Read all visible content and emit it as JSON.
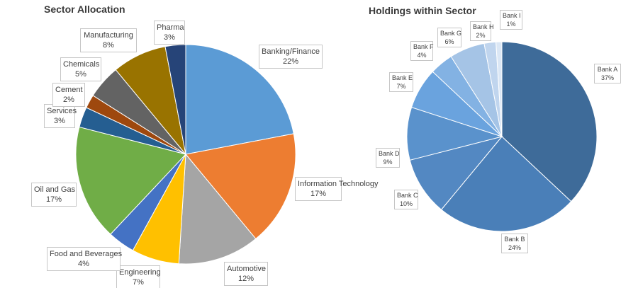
{
  "chart_data": [
    {
      "type": "pie",
      "title": "Sector Allocation",
      "categories": [
        "Banking/Finance",
        "Information Technology",
        "Automotive",
        "Engineering",
        "Food and Beverages",
        "Oil and Gas",
        "Services",
        "Cement",
        "Chemicals",
        "Manufacturing",
        "Pharma"
      ],
      "values": [
        22,
        17,
        12,
        7,
        4,
        17,
        3,
        2,
        5,
        8,
        3
      ],
      "labels": [
        "22%",
        "17%",
        "12%",
        "7%",
        "4%",
        "17%",
        "3%",
        "2%",
        "5%",
        "8%",
        "3%"
      ],
      "colors": [
        "#5b9bd5",
        "#ed7d31",
        "#a5a5a5",
        "#ffc000",
        "#4472c4",
        "#70ad47",
        "#255e91",
        "#9e480e",
        "#636363",
        "#997300",
        "#264478"
      ]
    },
    {
      "type": "pie",
      "title": "Holdings within Sector",
      "categories": [
        "Bank A",
        "Bank B",
        "Bank C",
        "Bank D",
        "Bank E",
        "Bank F",
        "Bank G",
        "Bank H",
        "Bank I"
      ],
      "values": [
        37,
        24,
        10,
        9,
        7,
        4,
        6,
        2,
        1
      ],
      "labels": [
        "37%",
        "24%",
        "10%",
        "9%",
        "7%",
        "4%",
        "6%",
        "2%",
        "1%"
      ],
      "colors": [
        "#3e6b99",
        "#4a7fb8",
        "#5388c2",
        "#5a92cc",
        "#6aa3de",
        "#83b2e3",
        "#a5c4e6",
        "#c0d5ee",
        "#dbe7f5"
      ]
    }
  ]
}
